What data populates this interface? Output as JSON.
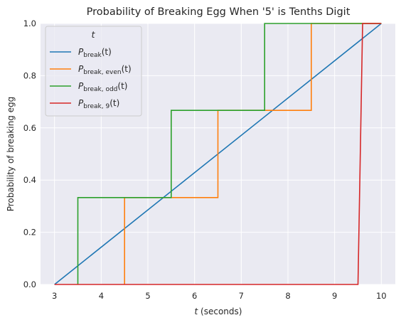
{
  "chart_data": {
    "type": "line",
    "title": "Probability of Breaking Egg When '5' is Tenths Digit",
    "xlabel_var": "t",
    "xlabel_rest": " (seconds)",
    "ylabel": "Probability of breaking egg",
    "xlim": [
      2.7,
      10.3
    ],
    "ylim": [
      0.0,
      1.0
    ],
    "xticks": [
      3,
      4,
      5,
      6,
      7,
      8,
      9,
      10
    ],
    "yticks": [
      0.0,
      0.2,
      0.4,
      0.6,
      0.8,
      1.0
    ],
    "grid": true,
    "legend": {
      "title": "t",
      "placement": "top-left"
    },
    "series": [
      {
        "name": "P_break(t)",
        "label_main": "P",
        "label_sub": "break",
        "label_arg": "(t)",
        "color": "#1f77b4",
        "x": [
          3.0,
          10.0
        ],
        "y": [
          0.0,
          1.0
        ]
      },
      {
        "name": "P_break, even(t)",
        "label_main": "P",
        "label_sub": "break, even",
        "label_arg": "(t)",
        "color": "#ff7f0e",
        "x": [
          4.5,
          4.5,
          6.5,
          6.5,
          8.5,
          8.5,
          10.0
        ],
        "y": [
          0.0,
          0.333,
          0.333,
          0.667,
          0.667,
          1.0,
          1.0
        ]
      },
      {
        "name": "P_break, odd(t)",
        "label_main": "P",
        "label_sub": "break, odd",
        "label_arg": "(t)",
        "color": "#2ca02c",
        "x": [
          3.5,
          3.5,
          5.5,
          5.5,
          7.5,
          7.5,
          10.0
        ],
        "y": [
          0.0,
          0.333,
          0.333,
          0.667,
          0.667,
          1.0,
          1.0
        ]
      },
      {
        "name": "P_break, 9(t)",
        "label_main": "P",
        "label_sub": "break, 9",
        "label_arg": "(t)",
        "color": "#d62728",
        "x": [
          3.0,
          9.5,
          9.6,
          10.0
        ],
        "y": [
          0.0,
          0.0,
          1.0,
          1.0
        ]
      }
    ]
  }
}
